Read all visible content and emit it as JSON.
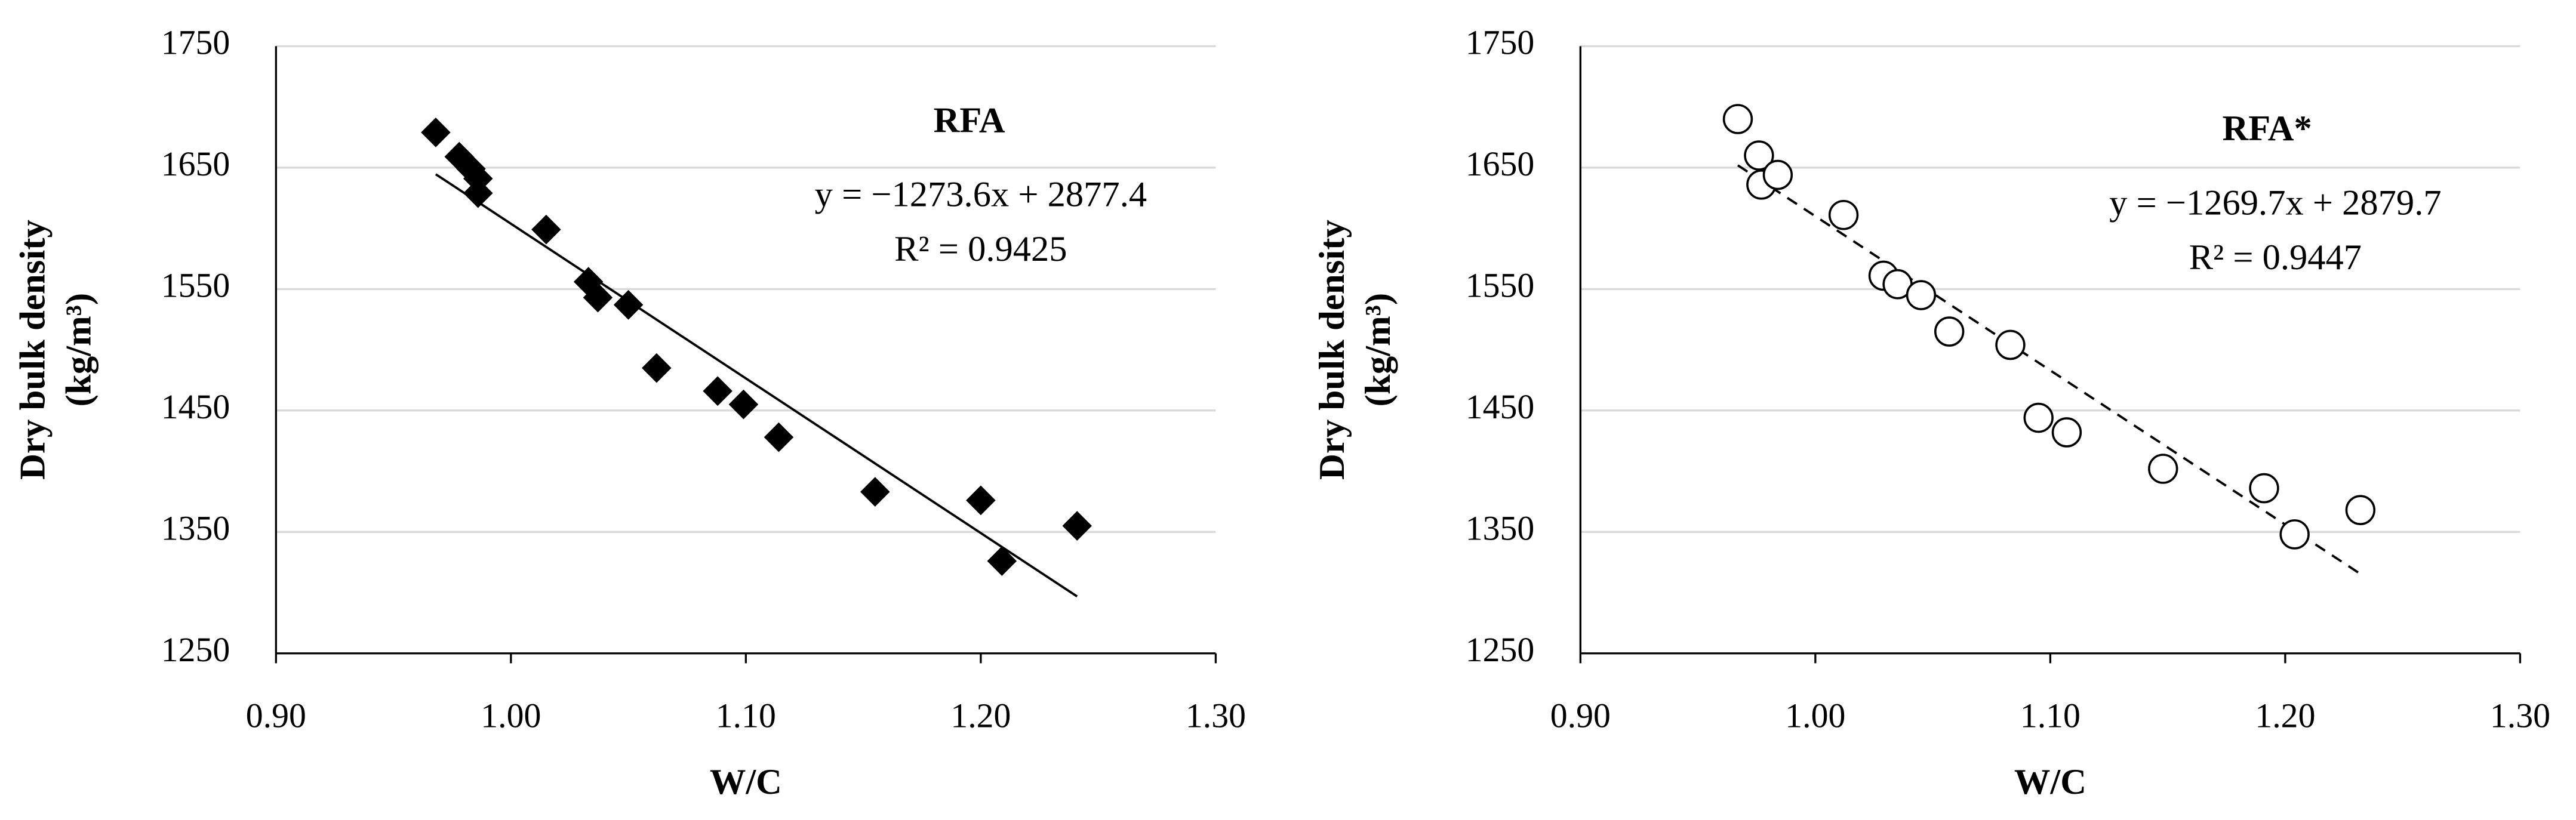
{
  "chart_data": [
    {
      "type": "scatter",
      "title": "RFA",
      "xlabel": "W/C",
      "ylabel": [
        "Dry bulk density",
        "(kg/m³)"
      ],
      "marker": "diamond",
      "color": "#000000",
      "grid": true,
      "x": [
        0.968,
        0.978,
        0.983,
        0.986,
        0.986,
        1.015,
        1.033,
        1.037,
        1.05,
        1.062,
        1.088,
        1.099,
        1.114,
        1.155,
        1.2,
        1.209,
        1.241
      ],
      "values": [
        1679,
        1659,
        1649,
        1641,
        1629,
        1599,
        1556,
        1543,
        1537,
        1485,
        1466,
        1455,
        1428,
        1383,
        1376,
        1326,
        1355
      ],
      "xlim": [
        0.9,
        1.3
      ],
      "xticks": [
        {
          "value": 0.9,
          "label": "0.90"
        },
        {
          "value": 1.0,
          "label": "1.00"
        },
        {
          "value": 1.1,
          "label": "1.10"
        },
        {
          "value": 1.2,
          "label": "1.20"
        },
        {
          "value": 1.3,
          "label": "1.30"
        }
      ],
      "ylim": [
        1250,
        1750
      ],
      "yticks": [
        1250,
        1350,
        1450,
        1550,
        1650,
        1750
      ],
      "trendline": {
        "slope": -1273.6,
        "intercept": 2877.4,
        "style": "solid",
        "equation": "y = −1273.6x + 2877.4",
        "r2": "R² = 0.9425"
      }
    },
    {
      "type": "scatter",
      "title": "RFA*",
      "xlabel": "W/C",
      "ylabel": [
        "Dry bulk density",
        "(kg/m³)"
      ],
      "marker": "circle",
      "color": "#000000",
      "grid": true,
      "x": [
        0.967,
        0.976,
        0.977,
        0.984,
        1.012,
        1.029,
        1.035,
        1.045,
        1.057,
        1.083,
        1.095,
        1.107,
        1.148,
        1.191,
        1.204,
        1.232
      ],
      "values": [
        1690,
        1660,
        1636,
        1644,
        1611,
        1561,
        1554,
        1545,
        1515,
        1504,
        1444,
        1432,
        1402,
        1386,
        1348,
        1368
      ],
      "xlim": [
        0.9,
        1.3
      ],
      "xticks": [
        {
          "value": 0.9,
          "label": "0.90"
        },
        {
          "value": 1.0,
          "label": "1.00"
        },
        {
          "value": 1.1,
          "label": "1.10"
        },
        {
          "value": 1.2,
          "label": "1.20"
        },
        {
          "value": 1.3,
          "label": "1.30"
        }
      ],
      "ylim": [
        1250,
        1750
      ],
      "yticks": [
        1250,
        1350,
        1450,
        1550,
        1650,
        1750
      ],
      "trendline": {
        "slope": -1269.7,
        "intercept": 2879.7,
        "style": "dashed",
        "equation": "y = −1269.7x + 2879.7",
        "r2": "R² = 0.9447"
      }
    }
  ]
}
